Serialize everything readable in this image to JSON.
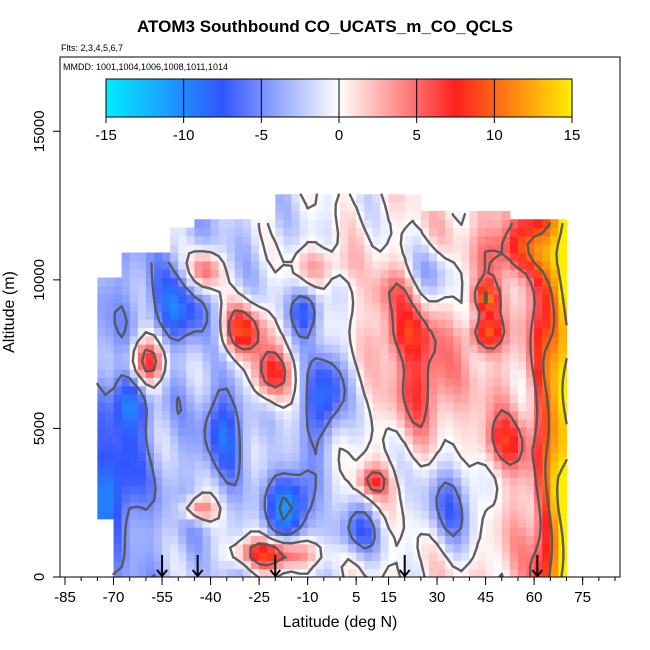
{
  "chart_data": {
    "type": "heatmap",
    "title": "ATOM3 Southbound CO_UCATS_m_CO_QCLS",
    "flights_note": "Flts: 2,3,4,5,6,7",
    "dates_note": "MMDD: 1001,1004,1006,1008,1011,1014",
    "xlabel": "Latitude (deg N)",
    "ylabel": "Altitude (m)",
    "xlim": [
      -85,
      85
    ],
    "ylim": [
      0,
      17500
    ],
    "x_ticks": [
      -85,
      -70,
      -55,
      -40,
      -25,
      -10,
      5,
      15,
      30,
      45,
      60,
      75
    ],
    "y_ticks": [
      0,
      5000,
      10000,
      15000
    ],
    "colorbar": {
      "range": [
        -15,
        15
      ],
      "ticks": [
        -15,
        -10,
        -5,
        0,
        5,
        10,
        15
      ],
      "colors": [
        "#00eeff",
        "#3355ff",
        "#ffffff",
        "#ff2020",
        "#ffee00"
      ]
    },
    "contour_levels": [
      -15,
      -10,
      -5,
      0,
      5,
      10,
      15
    ],
    "flight_arrows_lat": [
      -55,
      -44,
      -20,
      20,
      61
    ],
    "colors": {
      "contour": "#555555",
      "frame": "#000000"
    }
  }
}
